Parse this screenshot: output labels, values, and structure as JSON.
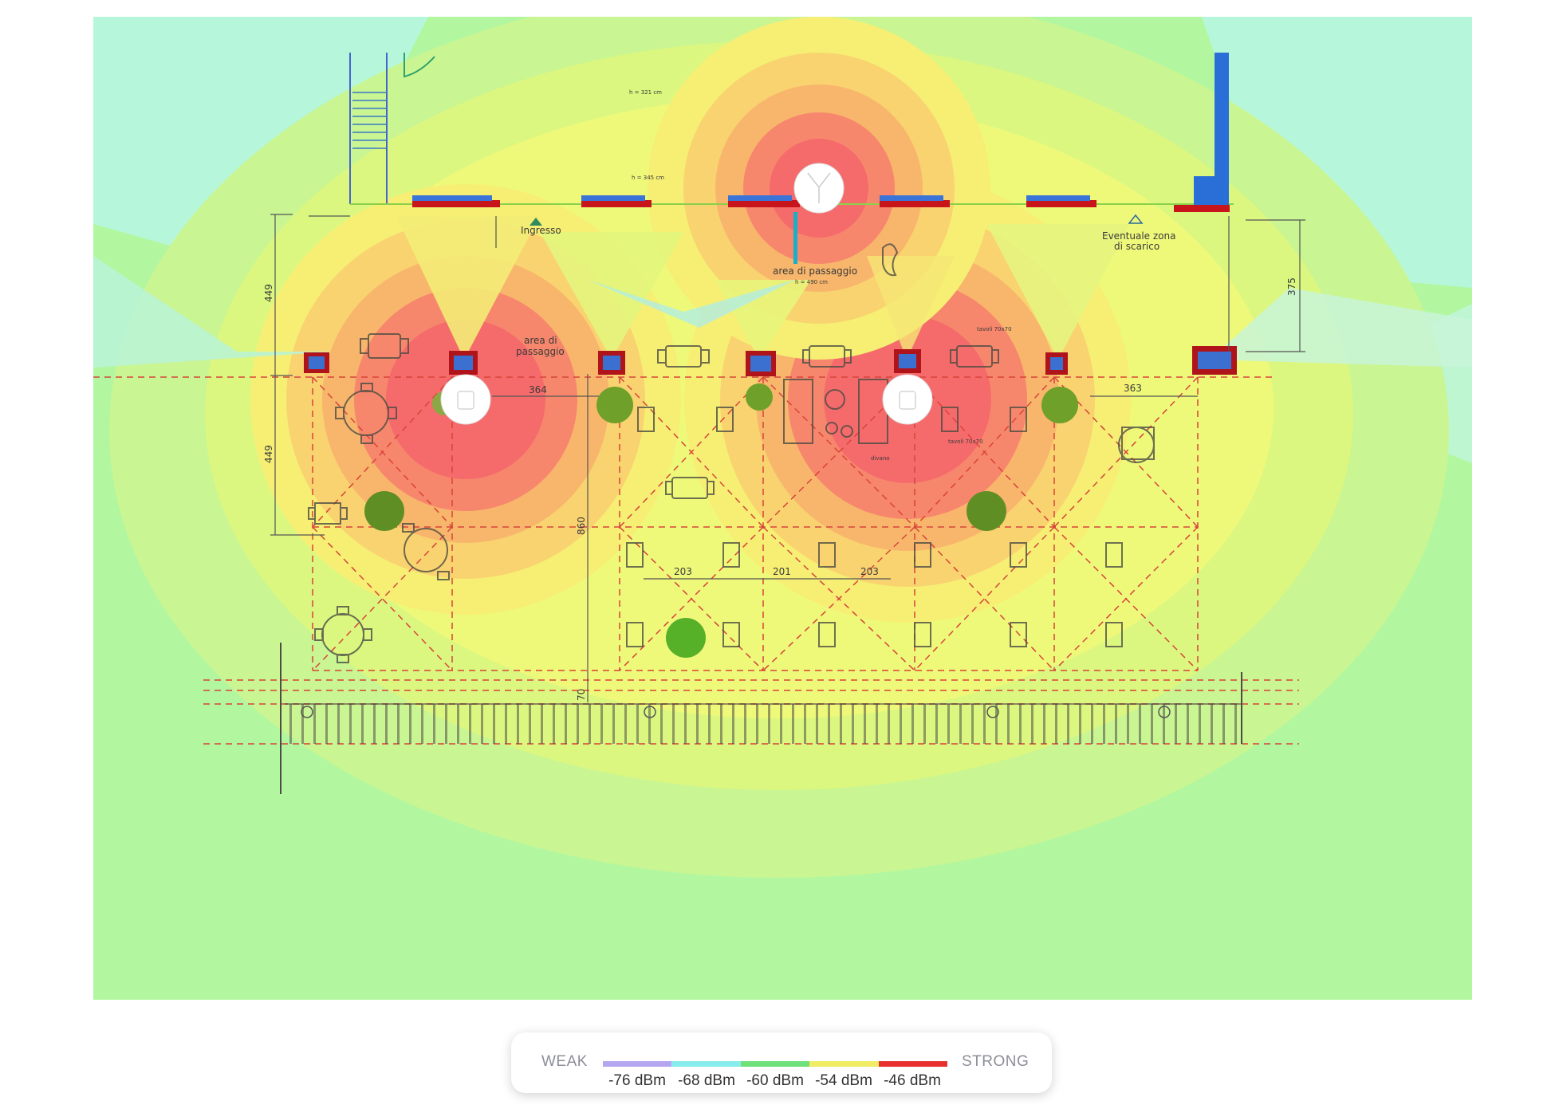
{
  "floorplan": {
    "labels": {
      "ingresso": "Ingresso",
      "area_passaggio_center": "area di passaggio",
      "area_passaggio_left_1": "area di",
      "area_passaggio_left_2": "passaggio",
      "eventuale_1": "Eventuale zona",
      "eventuale_2": "di  scarico",
      "h_top": "h = 321 cm",
      "h_mid": "h = 345 cm",
      "h_pass": "h = 490 cm",
      "divano": "divano",
      "tavoli_1": "tavoli 70x70",
      "tavoli_2": "tavoli 70x70"
    },
    "dimensions": {
      "d449a": "449",
      "d449b": "449",
      "d375": "375",
      "d364": "364",
      "d363": "363",
      "d860": "860",
      "d203a": "203",
      "d201": "201",
      "d203b": "203",
      "d70": "70"
    },
    "access_points": [
      "ap-1",
      "ap-2",
      "ap-3"
    ]
  },
  "legend": {
    "weak_label": "WEAK",
    "strong_label": "STRONG",
    "colors": [
      "#b4a6f0",
      "#86ecec",
      "#6fe07a",
      "#f0ec63",
      "#e8312e"
    ],
    "ticks": [
      "-76 dBm",
      "-68 dBm",
      "-60 dBm",
      "-54 dBm",
      "-46 dBm"
    ]
  }
}
